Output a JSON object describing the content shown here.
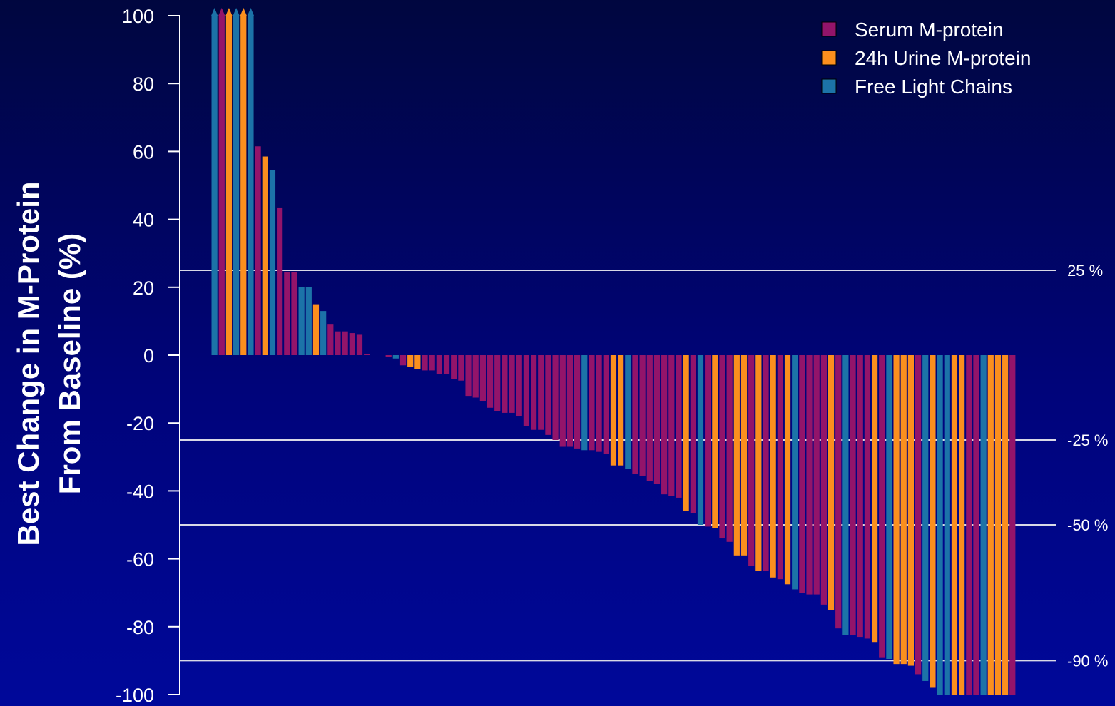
{
  "chart_data": {
    "type": "bar",
    "title": "",
    "ylabel_lines": [
      "Best Change in M-Protein",
      "From Baseline (%)"
    ],
    "xlabel": "",
    "ylim": [
      -100,
      100
    ],
    "yticks": [
      100,
      80,
      60,
      40,
      20,
      0,
      -20,
      -40,
      -60,
      -80,
      -100
    ],
    "grid": false,
    "legend_position": "top-right",
    "colors": {
      "serum": "#93146a",
      "urine": "#fb8f1e",
      "flc": "#1c73a8",
      "refline": "#d9d9e6",
      "axis": "#ffffff",
      "text": "#ffffff"
    },
    "series": [
      {
        "key": "serum",
        "name": "Serum M-protein"
      },
      {
        "key": "urine",
        "name": "24h Urine M-protein"
      },
      {
        "key": "flc",
        "name": "Free Light Chains"
      }
    ],
    "reference_lines": [
      {
        "value": 25,
        "label": "25 %"
      },
      {
        "value": -25,
        "label": "-25 %"
      },
      {
        "value": -50,
        "label": "-50 %"
      },
      {
        "value": -90,
        "label": "-90 %"
      }
    ],
    "capped_note": "Values above 100% are truncated at 100 and marked with an arrow",
    "bars": [
      {
        "v": 100,
        "s": "flc",
        "capped": true
      },
      {
        "v": 100,
        "s": "serum",
        "capped": true
      },
      {
        "v": 100,
        "s": "urine",
        "capped": true
      },
      {
        "v": 100,
        "s": "flc",
        "capped": true
      },
      {
        "v": 100,
        "s": "urine",
        "capped": true
      },
      {
        "v": 100,
        "s": "flc",
        "capped": true
      },
      {
        "v": 61.5,
        "s": "serum"
      },
      {
        "v": 58.5,
        "s": "urine"
      },
      {
        "v": 54.5,
        "s": "flc"
      },
      {
        "v": 43.5,
        "s": "serum"
      },
      {
        "v": 24.5,
        "s": "serum"
      },
      {
        "v": 24.5,
        "s": "serum"
      },
      {
        "v": 20,
        "s": "flc"
      },
      {
        "v": 20,
        "s": "flc"
      },
      {
        "v": 15,
        "s": "urine"
      },
      {
        "v": 13,
        "s": "flc"
      },
      {
        "v": 9,
        "s": "serum"
      },
      {
        "v": 7,
        "s": "serum"
      },
      {
        "v": 7,
        "s": "serum"
      },
      {
        "v": 6.5,
        "s": "serum"
      },
      {
        "v": 6,
        "s": "serum"
      },
      {
        "v": 0.3,
        "s": "serum"
      },
      {
        "v": 0,
        "s": "serum"
      },
      {
        "v": 0,
        "s": "serum"
      },
      {
        "v": -0.5,
        "s": "serum"
      },
      {
        "v": -1,
        "s": "flc"
      },
      {
        "v": -3,
        "s": "serum"
      },
      {
        "v": -3.5,
        "s": "urine"
      },
      {
        "v": -4,
        "s": "urine"
      },
      {
        "v": -4.5,
        "s": "serum"
      },
      {
        "v": -4.5,
        "s": "serum"
      },
      {
        "v": -5.5,
        "s": "serum"
      },
      {
        "v": -5.5,
        "s": "serum"
      },
      {
        "v": -7,
        "s": "serum"
      },
      {
        "v": -7.5,
        "s": "serum"
      },
      {
        "v": -12,
        "s": "serum"
      },
      {
        "v": -12.5,
        "s": "serum"
      },
      {
        "v": -13.5,
        "s": "serum"
      },
      {
        "v": -15.5,
        "s": "serum"
      },
      {
        "v": -16.5,
        "s": "serum"
      },
      {
        "v": -17,
        "s": "serum"
      },
      {
        "v": -17,
        "s": "serum"
      },
      {
        "v": -18,
        "s": "serum"
      },
      {
        "v": -21,
        "s": "serum"
      },
      {
        "v": -22,
        "s": "serum"
      },
      {
        "v": -22,
        "s": "serum"
      },
      {
        "v": -23.5,
        "s": "serum"
      },
      {
        "v": -25,
        "s": "serum"
      },
      {
        "v": -27,
        "s": "serum"
      },
      {
        "v": -27,
        "s": "serum"
      },
      {
        "v": -27.5,
        "s": "serum"
      },
      {
        "v": -28,
        "s": "flc"
      },
      {
        "v": -28,
        "s": "serum"
      },
      {
        "v": -28.5,
        "s": "serum"
      },
      {
        "v": -29,
        "s": "serum"
      },
      {
        "v": -32.5,
        "s": "urine"
      },
      {
        "v": -32.5,
        "s": "urine"
      },
      {
        "v": -33.5,
        "s": "flc"
      },
      {
        "v": -35,
        "s": "serum"
      },
      {
        "v": -35.5,
        "s": "serum"
      },
      {
        "v": -37,
        "s": "serum"
      },
      {
        "v": -38,
        "s": "serum"
      },
      {
        "v": -41,
        "s": "serum"
      },
      {
        "v": -41.5,
        "s": "serum"
      },
      {
        "v": -42,
        "s": "serum"
      },
      {
        "v": -46,
        "s": "urine"
      },
      {
        "v": -46.5,
        "s": "serum"
      },
      {
        "v": -50,
        "s": "flc"
      },
      {
        "v": -50.5,
        "s": "serum"
      },
      {
        "v": -51,
        "s": "urine"
      },
      {
        "v": -54,
        "s": "serum"
      },
      {
        "v": -55,
        "s": "serum"
      },
      {
        "v": -59,
        "s": "urine"
      },
      {
        "v": -59,
        "s": "urine"
      },
      {
        "v": -62,
        "s": "serum"
      },
      {
        "v": -63.5,
        "s": "urine"
      },
      {
        "v": -63.5,
        "s": "serum"
      },
      {
        "v": -65.5,
        "s": "urine"
      },
      {
        "v": -66,
        "s": "serum"
      },
      {
        "v": -67.5,
        "s": "urine"
      },
      {
        "v": -69,
        "s": "flc"
      },
      {
        "v": -70,
        "s": "serum"
      },
      {
        "v": -70.5,
        "s": "serum"
      },
      {
        "v": -70.5,
        "s": "serum"
      },
      {
        "v": -73.5,
        "s": "serum"
      },
      {
        "v": -75,
        "s": "urine"
      },
      {
        "v": -80.5,
        "s": "serum"
      },
      {
        "v": -82.5,
        "s": "flc"
      },
      {
        "v": -82.5,
        "s": "serum"
      },
      {
        "v": -83,
        "s": "serum"
      },
      {
        "v": -83.5,
        "s": "serum"
      },
      {
        "v": -84.5,
        "s": "urine"
      },
      {
        "v": -89,
        "s": "serum"
      },
      {
        "v": -89.5,
        "s": "flc"
      },
      {
        "v": -91,
        "s": "urine"
      },
      {
        "v": -91,
        "s": "urine"
      },
      {
        "v": -91.5,
        "s": "urine"
      },
      {
        "v": -94,
        "s": "serum"
      },
      {
        "v": -96,
        "s": "flc"
      },
      {
        "v": -98,
        "s": "urine"
      },
      {
        "v": -100,
        "s": "flc"
      },
      {
        "v": -100,
        "s": "flc"
      },
      {
        "v": -100,
        "s": "urine"
      },
      {
        "v": -100,
        "s": "urine"
      },
      {
        "v": -100,
        "s": "serum"
      },
      {
        "v": -100,
        "s": "serum"
      },
      {
        "v": -100,
        "s": "flc"
      },
      {
        "v": -100,
        "s": "urine"
      },
      {
        "v": -100,
        "s": "urine"
      },
      {
        "v": -100,
        "s": "urine"
      },
      {
        "v": -100,
        "s": "serum"
      }
    ]
  }
}
